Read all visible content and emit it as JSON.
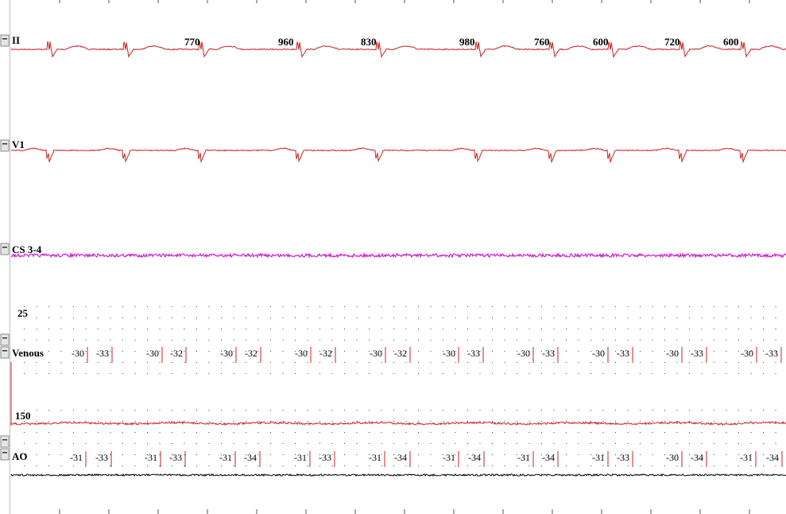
{
  "channels": [
    {
      "label": "II",
      "intervals": [
        "770",
        "960",
        "830",
        "980",
        "760",
        "600",
        "720",
        "600"
      ]
    },
    {
      "label": "V1"
    },
    {
      "label": "CS 3-4"
    },
    {
      "label": "Venous",
      "scale": "25",
      "measurements": [
        "-30",
        "-33",
        "-30",
        "-32",
        "-30",
        "-32",
        "-30",
        "-32",
        "-30",
        "-32",
        "-30",
        "-33",
        "-30",
        "-33",
        "-30",
        "-33",
        "-30",
        "-33",
        "-30",
        "-33"
      ]
    },
    {
      "label": "AO",
      "scale": "150",
      "measurements": [
        "-31",
        "-33",
        "-31",
        "-33",
        "-31",
        "-34",
        "-31",
        "-33",
        "-31",
        "-34",
        "-31",
        "-34",
        "-31",
        "-34",
        "-31",
        "-33",
        "-30",
        "-34",
        "-31",
        "-34"
      ]
    }
  ]
}
